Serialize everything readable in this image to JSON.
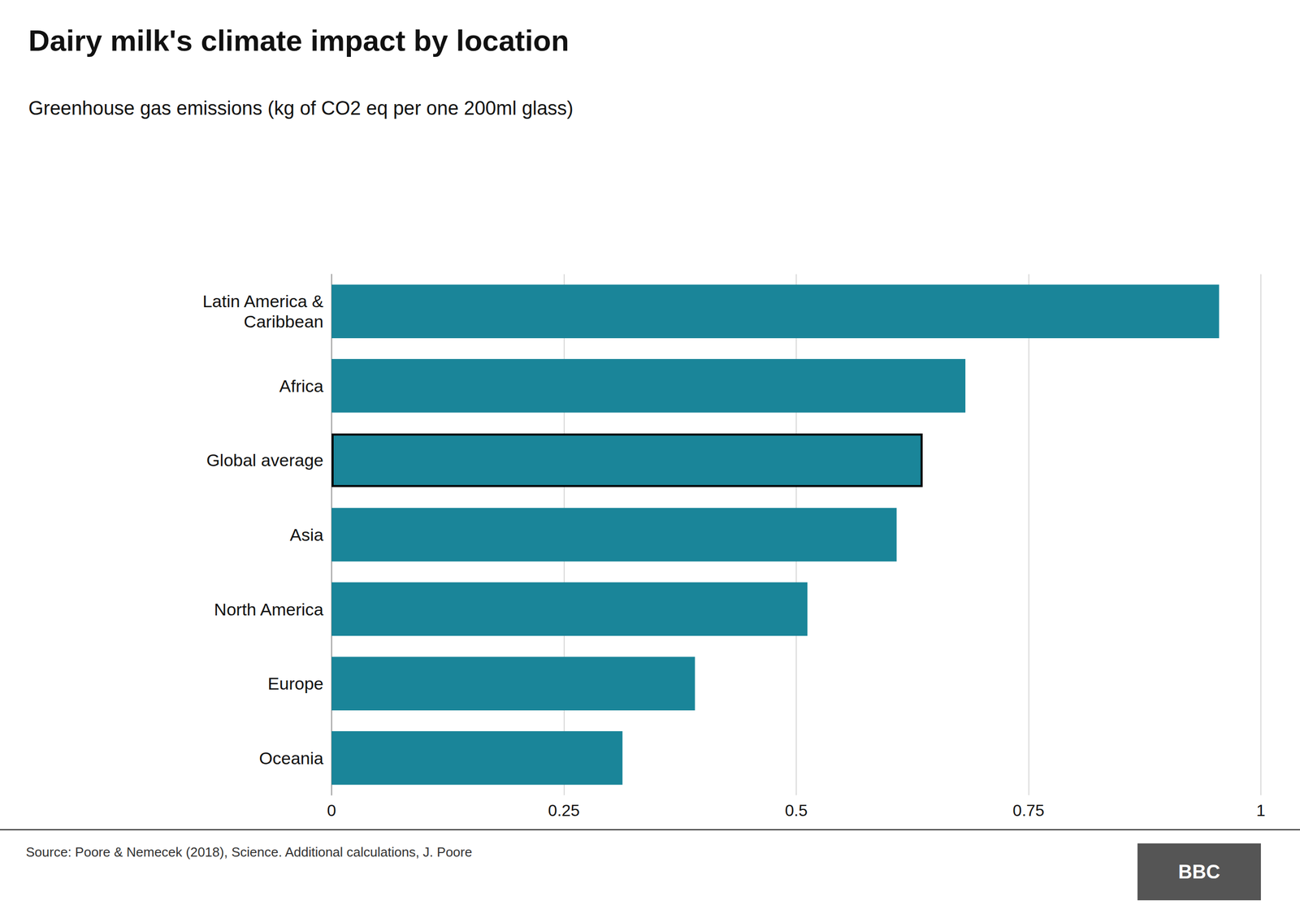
{
  "chart_data": {
    "type": "bar",
    "orientation": "horizontal",
    "title": "Dairy milk's climate impact by location",
    "subtitle": "Greenhouse gas emissions (kg of CO2 eq per one 200ml glass)",
    "categories": [
      "Latin America &\nCaribbean",
      "Africa",
      "Global average",
      "Asia",
      "North America",
      "Europe",
      "Oceania"
    ],
    "values": [
      0.955,
      0.682,
      0.636,
      0.608,
      0.512,
      0.391,
      0.313
    ],
    "color": "#1a8599",
    "xlim": [
      0,
      1
    ],
    "xticks": [
      0,
      0.25,
      0.5,
      0.75,
      1
    ],
    "grid": true,
    "annotations": [
      "Source: Poore & Nemecek (2018), Science. Additional calculations, J. Poore",
      "BBC"
    ]
  }
}
